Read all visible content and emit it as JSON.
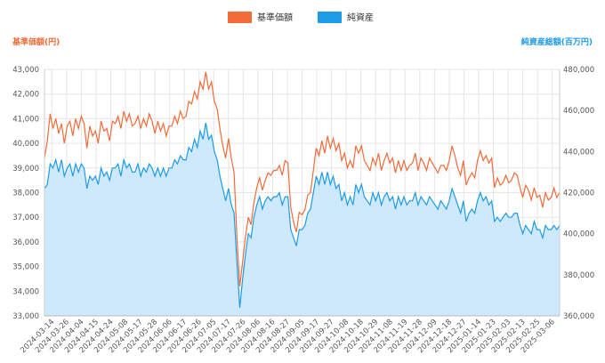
{
  "chart_data": {
    "type": "line",
    "legend_position": "top-center",
    "grid": true,
    "left_axis_title": "基準価額(円)",
    "right_axis_title": "純資産総額(百万円)",
    "left_ylim": [
      33000,
      43000
    ],
    "right_ylim": [
      360000,
      480000
    ],
    "left_ticks": [
      "43,000",
      "42,000",
      "41,000",
      "40,000",
      "39,000",
      "38,000",
      "37,000",
      "36,000",
      "35,000",
      "34,000",
      "33,000"
    ],
    "right_ticks": [
      "480,000",
      "460,000",
      "440,000",
      "420,000",
      "400,000",
      "380,000",
      "360,000"
    ],
    "x_labels": [
      "2024-03-14",
      "2024-03-26",
      "2024-04-04",
      "2024-04-15",
      "2024-04-24",
      "2024-05-08",
      "2024-05-17",
      "2024-05-28",
      "2024-06-06",
      "2024-06-17",
      "2024-06-26",
      "2024-07-05",
      "2024-07-17",
      "2024-07-26",
      "2024-08-06",
      "2024-08-16",
      "2024-08-27",
      "2024-09-05",
      "2024-09-17",
      "2024-09-27",
      "2024-10-08",
      "2024-10-18",
      "2024-10-29",
      "2024-11-08",
      "2024-11-19",
      "2024-11-28",
      "2024-12-09",
      "2024-12-18",
      "2024-12-27",
      "2025-01-14",
      "2025-01-23",
      "2025-02-03",
      "2025-02-13",
      "2025-02-25",
      "2025-03-06"
    ],
    "colors": {
      "nav": "#f26b38",
      "assets_line": "#1e9be6",
      "assets_fill": "#cde9fb"
    },
    "series": [
      {
        "name": "基準価額",
        "axis": "left",
        "values": [
          39400,
          40100,
          41200,
          40600,
          41000,
          40400,
          40800,
          40000,
          40700,
          40900,
          40300,
          41000,
          40600,
          41100,
          40800,
          39800,
          40700,
          40300,
          40500,
          40000,
          40900,
          40500,
          40600,
          40100,
          40900,
          40800,
          41100,
          40600,
          41300,
          40900,
          41200,
          40700,
          40800,
          41100,
          40600,
          41000,
          40700,
          41200,
          40900,
          40400,
          40900,
          40500,
          40800,
          40300,
          40700,
          40700,
          41100,
          40800,
          41300,
          41000,
          41100,
          41700,
          41600,
          42100,
          41800,
          42500,
          42200,
          42900,
          42200,
          42500,
          41700,
          41400,
          40600,
          39900,
          39400,
          40200,
          39400,
          38800,
          36200,
          34200,
          35200,
          36200,
          37000,
          36700,
          37600,
          38200,
          38600,
          38100,
          38500,
          38800,
          38700,
          38900,
          38900,
          39100,
          38700,
          39300,
          39200,
          37400,
          36800,
          36400,
          37200,
          37100,
          37300,
          37900,
          38000,
          38900,
          39800,
          39500,
          40100,
          39600,
          40300,
          39800,
          40200,
          39700,
          40000,
          39300,
          39600,
          39000,
          39300,
          39000,
          39900,
          39600,
          39900,
          39300,
          39100,
          38900,
          39400,
          39100,
          39600,
          38900,
          39300,
          39600,
          39200,
          39400,
          38800,
          39300,
          38900,
          39300,
          38900,
          39100,
          39200,
          39600,
          38900,
          39400,
          39200,
          38900,
          39400,
          39200,
          39000,
          38800,
          39100,
          39100,
          38900,
          39300,
          39900,
          39500,
          39000,
          38700,
          39300,
          38300,
          38600,
          38800,
          38600,
          39300,
          39700,
          39300,
          39500,
          39200,
          39400,
          38200,
          38600,
          38300,
          38400,
          38700,
          38400,
          38500,
          38800,
          38700,
          38200,
          37800,
          38300,
          38100,
          37700,
          38200,
          37800,
          37900,
          37400,
          38000,
          37700,
          37800,
          38200,
          37800,
          38000
        ]
      },
      {
        "name": "純資産",
        "axis": "right",
        "values": [
          422000,
          424000,
          434000,
          432000,
          436000,
          430000,
          436000,
          428000,
          432000,
          434000,
          428000,
          434000,
          430000,
          434000,
          432000,
          422000,
          428000,
          426000,
          428000,
          424000,
          432000,
          428000,
          430000,
          426000,
          432000,
          432000,
          434000,
          428000,
          436000,
          432000,
          434000,
          430000,
          430000,
          434000,
          428000,
          432000,
          430000,
          434000,
          432000,
          428000,
          432000,
          428000,
          432000,
          428000,
          432000,
          432000,
          436000,
          434000,
          438000,
          436000,
          436000,
          442000,
          440000,
          446000,
          442000,
          450000,
          446000,
          454000,
          446000,
          448000,
          440000,
          436000,
          428000,
          422000,
          416000,
          422000,
          414000,
          410000,
          386000,
          364000,
          378000,
          390000,
          400000,
          398000,
          408000,
          414000,
          418000,
          412000,
          416000,
          418000,
          416000,
          418000,
          418000,
          420000,
          414000,
          418000,
          418000,
          402000,
          398000,
          394000,
          402000,
          402000,
          404000,
          410000,
          412000,
          420000,
          428000,
          424000,
          430000,
          424000,
          430000,
          424000,
          428000,
          422000,
          424000,
          416000,
          420000,
          414000,
          418000,
          414000,
          424000,
          420000,
          424000,
          418000,
          416000,
          414000,
          420000,
          416000,
          420000,
          414000,
          418000,
          420000,
          416000,
          418000,
          412000,
          418000,
          414000,
          418000,
          414000,
          416000,
          416000,
          420000,
          414000,
          418000,
          416000,
          414000,
          418000,
          416000,
          414000,
          412000,
          416000,
          414000,
          412000,
          416000,
          422000,
          418000,
          414000,
          410000,
          416000,
          406000,
          410000,
          412000,
          410000,
          416000,
          420000,
          416000,
          418000,
          414000,
          416000,
          406000,
          408000,
          406000,
          408000,
          410000,
          408000,
          408000,
          410000,
          410000,
          404000,
          400000,
          404000,
          402000,
          400000,
          406000,
          402000,
          402000,
          398000,
          404000,
          402000,
          402000,
          404000,
          402000,
          404000
        ]
      }
    ]
  }
}
